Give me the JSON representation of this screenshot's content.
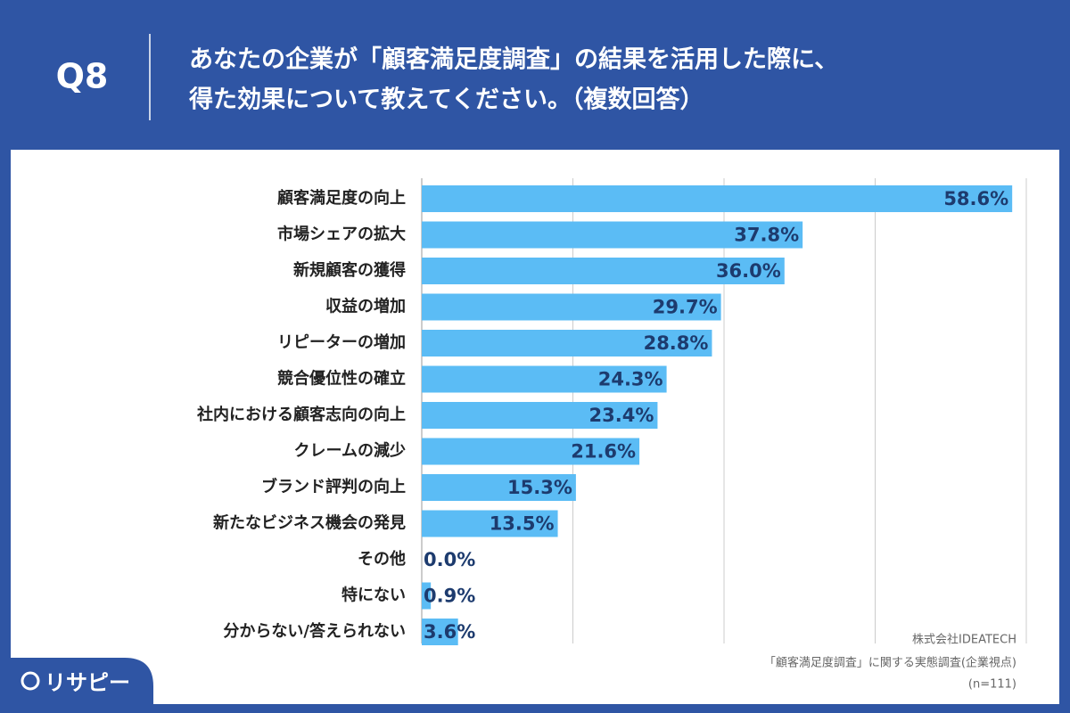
{
  "header": {
    "question": "Q8",
    "title_lines": [
      "あなたの企業が「顧客満足度調査」の結果を活用した際に、",
      "得た効果について教えてください。（複数回答）"
    ]
  },
  "chart_data": {
    "type": "bar",
    "orientation": "horizontal",
    "categories": [
      "顧客満足度の向上",
      "市場シェアの拡大",
      "新規顧客の獲得",
      "収益の増加",
      "リピーターの増加",
      "競合優位性の確立",
      "社内における顧客志向の向上",
      "クレームの減少",
      "ブランド評判の向上",
      "新たなビジネス機会の発見",
      "その他",
      "特にない",
      "分からない/答えられない"
    ],
    "values": [
      58.6,
      37.8,
      36.0,
      29.7,
      28.8,
      24.3,
      23.4,
      21.6,
      15.3,
      13.5,
      0.0,
      0.9,
      3.6
    ],
    "value_labels": [
      "58.6%",
      "37.8%",
      "36.0%",
      "29.7%",
      "28.8%",
      "24.3%",
      "23.4%",
      "21.6%",
      "15.3%",
      "13.5%",
      "0.0%",
      "0.9%",
      "3.6%"
    ],
    "color": "#5bbcf5",
    "xlim": [
      0,
      60
    ],
    "xticks": [
      0,
      15,
      30,
      45,
      60
    ],
    "grid": true
  },
  "source": [
    "株式会社IDEATECH",
    "「顧客満足度調査」に関する実態調査(企業視点)",
    "(n=111)"
  ],
  "logo": "リサピー"
}
